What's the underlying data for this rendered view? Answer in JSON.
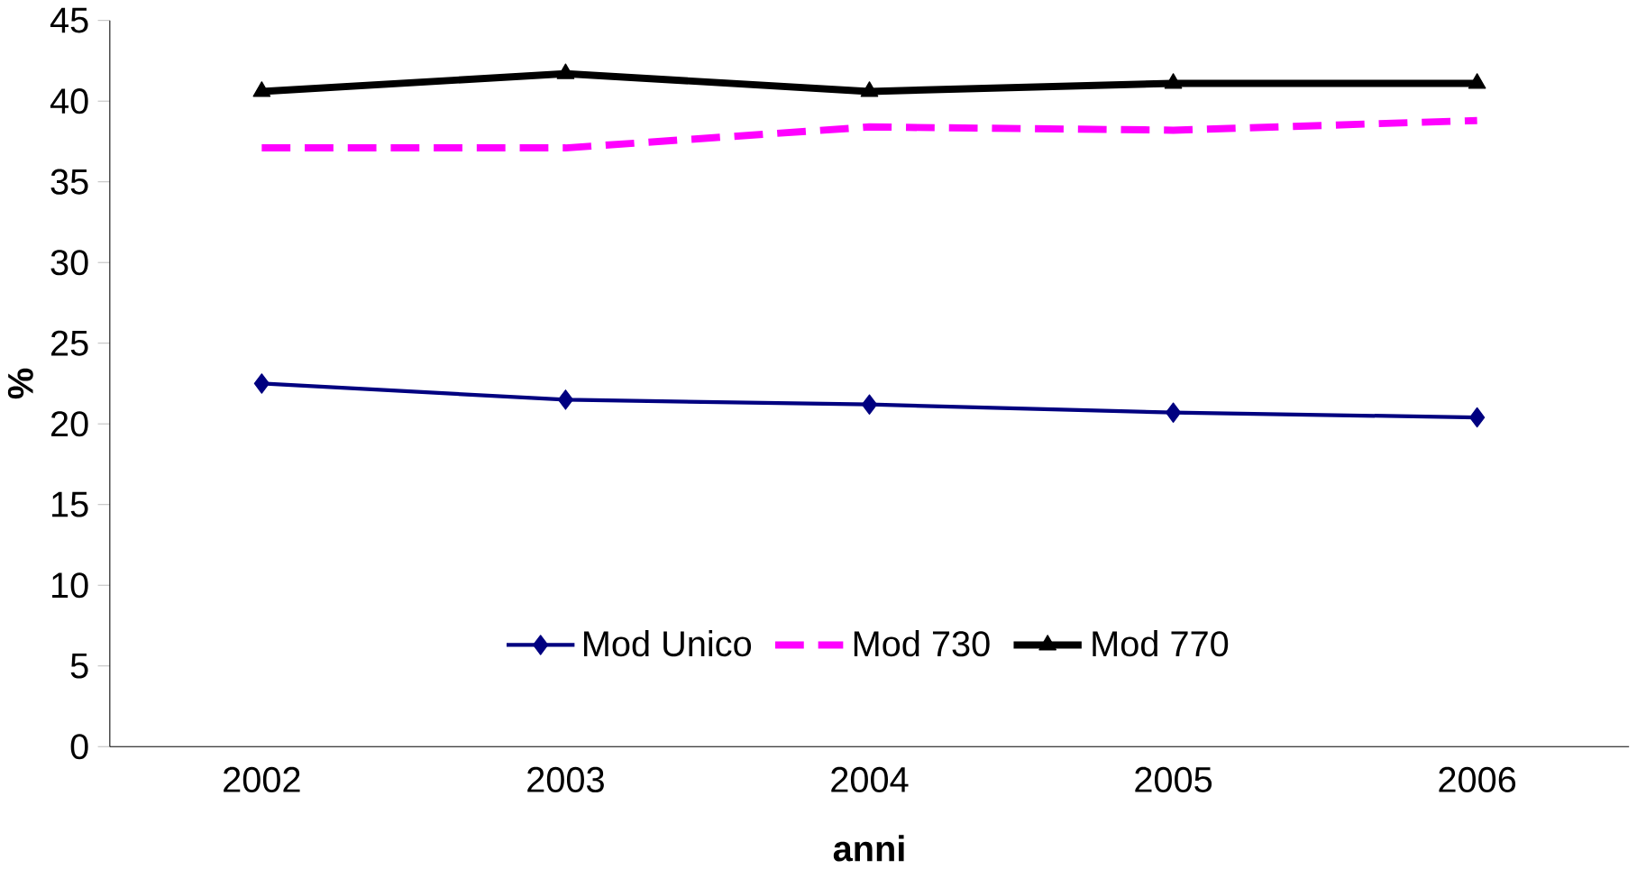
{
  "chart_data": {
    "type": "line",
    "xlabel": "anni",
    "ylabel": "%",
    "categories": [
      "2002",
      "2003",
      "2004",
      "2005",
      "2006"
    ],
    "series": [
      {
        "name": "Mod Unico",
        "color": "#000080",
        "values": [
          22.5,
          21.5,
          21.2,
          20.7,
          20.4
        ],
        "marker": "diamond",
        "line_style": "solid"
      },
      {
        "name": "Mod 730",
        "color": "#ff00ff",
        "values": [
          37.1,
          37.1,
          38.4,
          38.2,
          38.8
        ],
        "marker": "none",
        "line_style": "dashed"
      },
      {
        "name": "Mod 770",
        "color": "#000000",
        "values": [
          40.6,
          41.7,
          40.6,
          41.1,
          41.1
        ],
        "marker": "triangle",
        "line_style": "solid"
      }
    ],
    "ylim": [
      0,
      45
    ],
    "yticks": [
      0,
      5,
      10,
      15,
      20,
      25,
      30,
      35,
      40,
      45
    ],
    "grid": false,
    "legend": "bottom"
  }
}
